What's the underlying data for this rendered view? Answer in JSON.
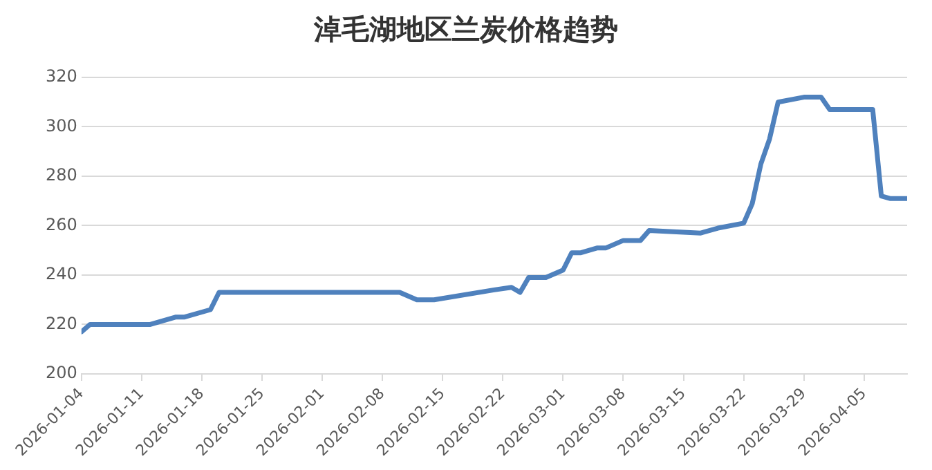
{
  "chart_data": {
    "type": "line",
    "title": "淖毛湖地区兰炭价格趋势",
    "x": [
      "2026-01-04",
      "2026-01-05",
      "2026-01-12",
      "2026-01-15",
      "2026-01-16",
      "2026-01-19",
      "2026-01-20",
      "2026-02-10",
      "2026-02-12",
      "2026-02-14",
      "2026-02-21",
      "2026-02-23",
      "2026-02-24",
      "2026-02-25",
      "2026-02-27",
      "2026-03-01",
      "2026-03-02",
      "2026-03-03",
      "2026-03-05",
      "2026-03-06",
      "2026-03-08",
      "2026-03-10",
      "2026-03-11",
      "2026-03-17",
      "2026-03-19",
      "2026-03-22",
      "2026-03-23",
      "2026-03-24",
      "2026-03-25",
      "2026-03-26",
      "2026-03-29",
      "2026-03-31",
      "2026-04-01",
      "2026-04-06",
      "2026-04-07",
      "2026-04-08",
      "2026-04-10"
    ],
    "series": [
      {
        "color": "#4f81bd",
        "values": [
          217,
          220,
          220,
          223,
          223,
          226,
          233,
          233,
          230,
          230,
          234,
          235,
          233,
          239,
          239,
          242,
          249,
          249,
          251,
          251,
          254,
          254,
          258,
          257,
          259,
          261,
          269,
          285,
          295,
          310,
          312,
          312,
          307,
          307,
          272,
          271,
          271
        ]
      }
    ],
    "xlim": [
      "2026-01-04",
      "2026-04-10"
    ],
    "xticks": [
      "2026-01-04",
      "2026-01-11",
      "2026-01-18",
      "2026-01-25",
      "2026-02-01",
      "2026-02-08",
      "2026-02-15",
      "2026-02-22",
      "2026-03-01",
      "2026-03-08",
      "2026-03-15",
      "2026-03-22",
      "2026-03-29",
      "2026-04-05"
    ],
    "ylim": [
      200,
      320
    ],
    "yticks": [
      200,
      220,
      240,
      260,
      280,
      300,
      320
    ],
    "grid": "y",
    "legend": false,
    "marker": "none",
    "line_style": "solid"
  }
}
